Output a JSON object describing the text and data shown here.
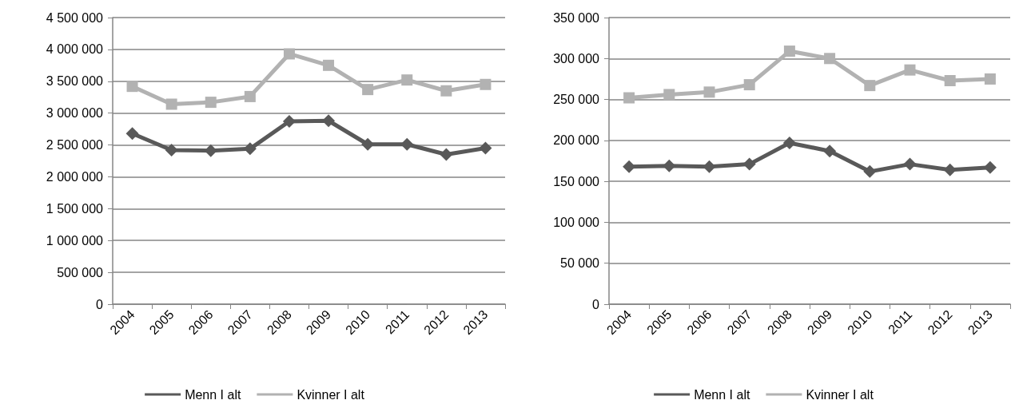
{
  "chart_data": [
    {
      "type": "line",
      "categories": [
        "2004",
        "2005",
        "2006",
        "2007",
        "2008",
        "2009",
        "2010",
        "2011",
        "2012",
        "2013"
      ],
      "series": [
        {
          "name": "Menn I alt",
          "color": "#595959",
          "marker": "diamond",
          "values": [
            2680000,
            2420000,
            2410000,
            2440000,
            2870000,
            2880000,
            2510000,
            2510000,
            2350000,
            2450000
          ]
        },
        {
          "name": "Kvinner I alt",
          "color": "#b2b2b2",
          "marker": "square",
          "values": [
            3420000,
            3140000,
            3170000,
            3260000,
            3930000,
            3750000,
            3370000,
            3520000,
            3350000,
            3450000
          ]
        }
      ],
      "ylim": [
        0,
        4500000
      ],
      "yticks": [
        {
          "value": 0,
          "label": "0"
        },
        {
          "value": 500000,
          "label": "500 000"
        },
        {
          "value": 1000000,
          "label": "1 000 000"
        },
        {
          "value": 1500000,
          "label": "1 500 000"
        },
        {
          "value": 2000000,
          "label": "2 000 000"
        },
        {
          "value": 2500000,
          "label": "2 500 000"
        },
        {
          "value": 3000000,
          "label": "3 000 000"
        },
        {
          "value": 3500000,
          "label": "3 500 000"
        },
        {
          "value": 4000000,
          "label": "4 000 000"
        },
        {
          "value": 4500000,
          "label": "4 500 000"
        }
      ],
      "grid": "y",
      "legend": "bottom",
      "line_style": "solid"
    },
    {
      "type": "line",
      "categories": [
        "2004",
        "2005",
        "2006",
        "2007",
        "2008",
        "2009",
        "2010",
        "2011",
        "2012",
        "2013"
      ],
      "series": [
        {
          "name": "Menn I alt",
          "color": "#595959",
          "marker": "diamond",
          "values": [
            168000,
            169000,
            168000,
            171000,
            197000,
            187000,
            162000,
            171000,
            164000,
            167000
          ]
        },
        {
          "name": "Kvinner I alt",
          "color": "#b2b2b2",
          "marker": "square",
          "values": [
            252000,
            256000,
            259000,
            268000,
            309000,
            300000,
            267000,
            286000,
            273000,
            275000
          ]
        }
      ],
      "ylim": [
        0,
        350000
      ],
      "yticks": [
        {
          "value": 0,
          "label": "0"
        },
        {
          "value": 50000,
          "label": "50 000"
        },
        {
          "value": 100000,
          "label": "100 000"
        },
        {
          "value": 150000,
          "label": "150 000"
        },
        {
          "value": 200000,
          "label": "200 000"
        },
        {
          "value": 250000,
          "label": "250 000"
        },
        {
          "value": 300000,
          "label": "300 000"
        },
        {
          "value": 350000,
          "label": "350 000"
        }
      ],
      "grid": "y",
      "legend": "bottom",
      "line_style": "solid"
    }
  ]
}
